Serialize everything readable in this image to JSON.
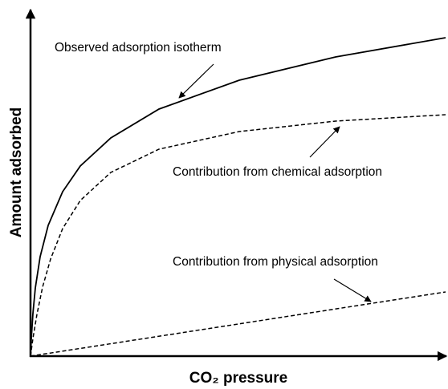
{
  "annotations": {
    "observed": "Observed adsorption isotherm",
    "chemical": "Contribution from chemical adsorption",
    "physical": "Contribution from physical adsorption"
  },
  "axes": {
    "x_label": "CO₂ pressure",
    "y_label": "Amount adsorbed"
  }
}
